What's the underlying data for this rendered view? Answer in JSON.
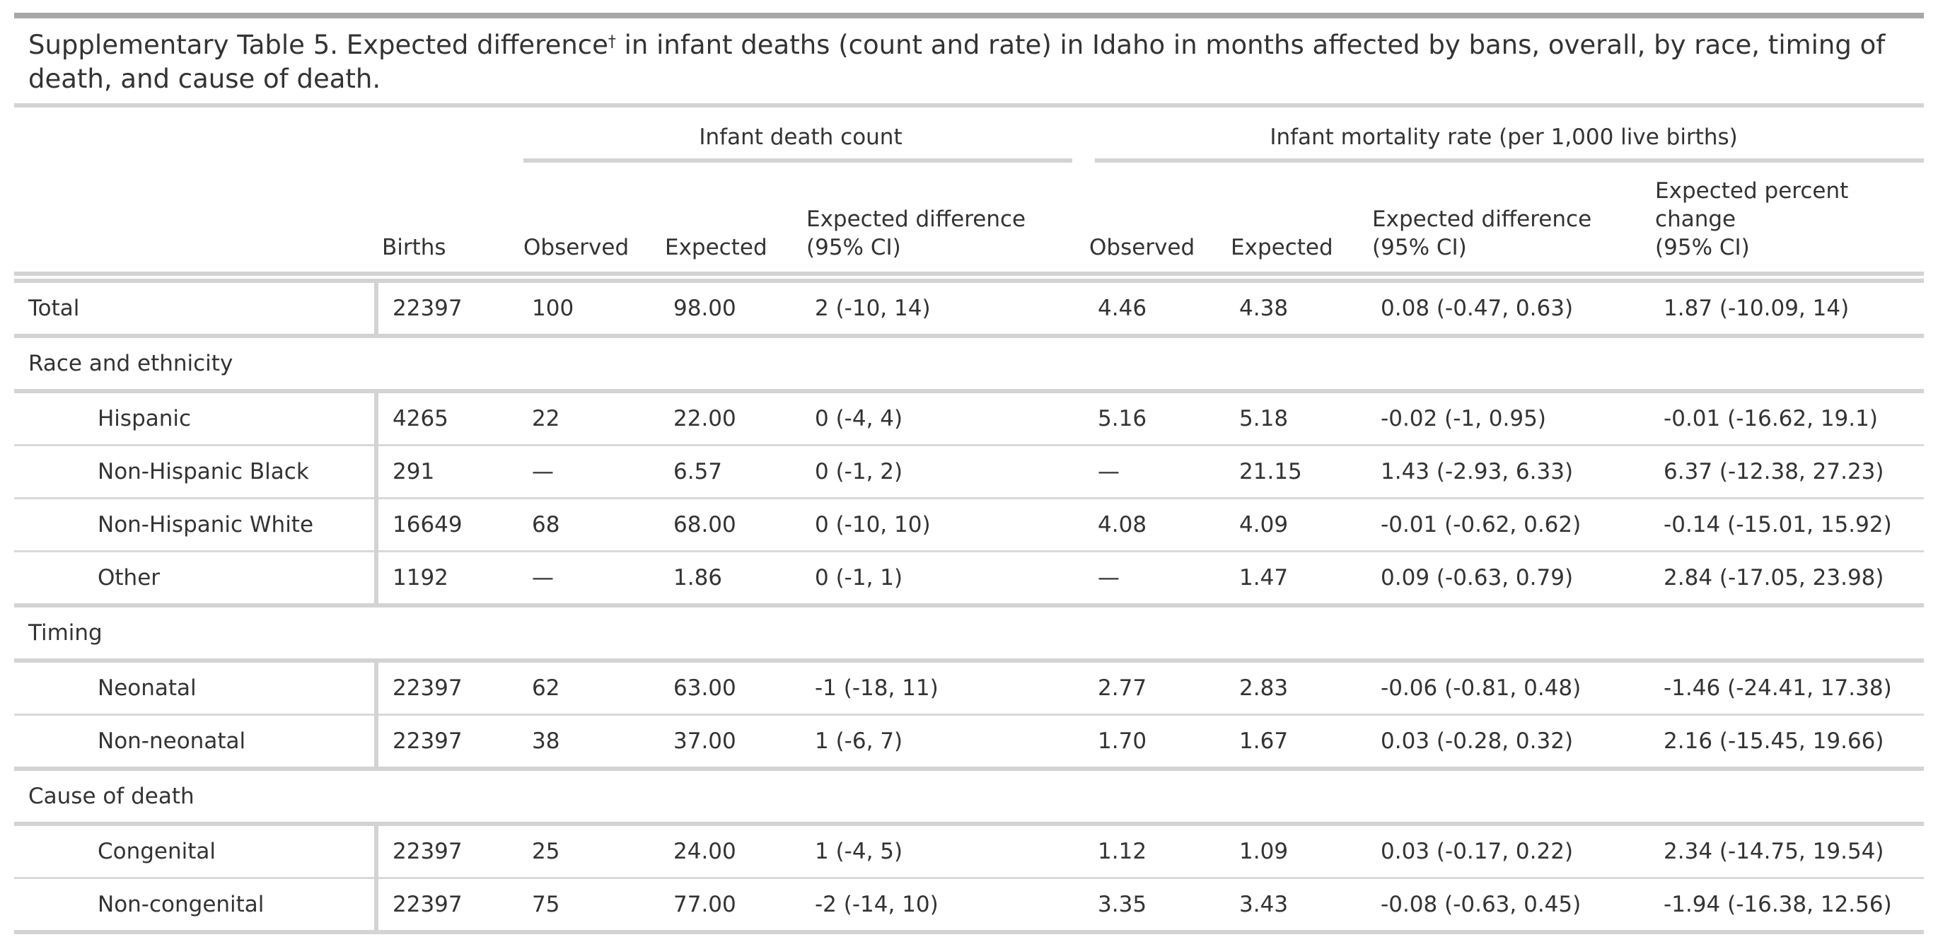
{
  "caption": {
    "text_before_sup": "Supplementary Table 5. Expected difference",
    "sup": "†",
    "text_after_sup": " in infant deaths (count and rate) in Idaho in months affected by bans, overall, by race, timing of death, and cause of death."
  },
  "spanners": {
    "count": "Infant death count",
    "rate": "Infant mortality rate (per 1,000 live births)"
  },
  "columns": {
    "births": "Births",
    "count_observed": "Observed",
    "count_expected": "Expected",
    "count_diff_line1": "Expected difference",
    "count_diff_line2": "(95% CI)",
    "rate_observed": "Observed",
    "rate_expected": "Expected",
    "rate_diff_line1": "Expected difference",
    "rate_diff_line2": "(95% CI)",
    "pct_line1": "Expected percent",
    "pct_line2": "change",
    "pct_line3": "(95% CI)"
  },
  "total": {
    "label": "Total",
    "births": "22397",
    "count_observed": "100",
    "count_expected": "98.00",
    "count_diff": "2 (-10, 14)",
    "rate_observed": "4.46",
    "rate_expected": "4.38",
    "rate_diff": "0.08 (-0.47, 0.63)",
    "pct_change": "1.87 (-10.09, 14)"
  },
  "groups": [
    {
      "label": "Race and ethnicity",
      "rows": [
        {
          "label": "Hispanic",
          "births": "4265",
          "count_observed": "22",
          "count_expected": "22.00",
          "count_diff": "0 (-4, 4)",
          "rate_observed": "5.16",
          "rate_expected": "5.18",
          "rate_diff": "-0.02 (-1, 0.95)",
          "pct_change": "-0.01 (-16.62, 19.1)"
        },
        {
          "label": "Non-Hispanic Black",
          "births": "291",
          "count_observed": "—",
          "count_expected": "6.57",
          "count_diff": "0 (-1, 2)",
          "rate_observed": "—",
          "rate_expected": "21.15",
          "rate_diff": "1.43 (-2.93, 6.33)",
          "pct_change": "6.37 (-12.38, 27.23)"
        },
        {
          "label": "Non-Hispanic White",
          "births": "16649",
          "count_observed": "68",
          "count_expected": "68.00",
          "count_diff": "0 (-10, 10)",
          "rate_observed": "4.08",
          "rate_expected": "4.09",
          "rate_diff": "-0.01 (-0.62, 0.62)",
          "pct_change": "-0.14 (-15.01, 15.92)"
        },
        {
          "label": "Other",
          "births": "1192",
          "count_observed": "—",
          "count_expected": "1.86",
          "count_diff": "0 (-1, 1)",
          "rate_observed": "—",
          "rate_expected": "1.47",
          "rate_diff": "0.09 (-0.63, 0.79)",
          "pct_change": "2.84 (-17.05, 23.98)"
        }
      ]
    },
    {
      "label": "Timing",
      "rows": [
        {
          "label": "Neonatal",
          "births": "22397",
          "count_observed": "62",
          "count_expected": "63.00",
          "count_diff": "-1 (-18, 11)",
          "rate_observed": "2.77",
          "rate_expected": "2.83",
          "rate_diff": "-0.06 (-0.81, 0.48)",
          "pct_change": "-1.46 (-24.41, 17.38)"
        },
        {
          "label": "Non-neonatal",
          "births": "22397",
          "count_observed": "38",
          "count_expected": "37.00",
          "count_diff": "1 (-6, 7)",
          "rate_observed": "1.70",
          "rate_expected": "1.67",
          "rate_diff": "0.03 (-0.28, 0.32)",
          "pct_change": "2.16 (-15.45, 19.66)"
        }
      ]
    },
    {
      "label": "Cause of death",
      "rows": [
        {
          "label": "Congenital",
          "births": "22397",
          "count_observed": "25",
          "count_expected": "24.00",
          "count_diff": "1 (-4, 5)",
          "rate_observed": "1.12",
          "rate_expected": "1.09",
          "rate_diff": "0.03 (-0.17, 0.22)",
          "pct_change": "2.34 (-14.75, 19.54)"
        },
        {
          "label": "Non-congenital",
          "births": "22397",
          "count_observed": "75",
          "count_expected": "77.00",
          "count_diff": "-2 (-14, 10)",
          "rate_observed": "3.35",
          "rate_expected": "3.43",
          "rate_diff": "-0.08 (-0.63, 0.45)",
          "pct_change": "-1.94 (-16.38, 12.56)"
        }
      ]
    }
  ]
}
